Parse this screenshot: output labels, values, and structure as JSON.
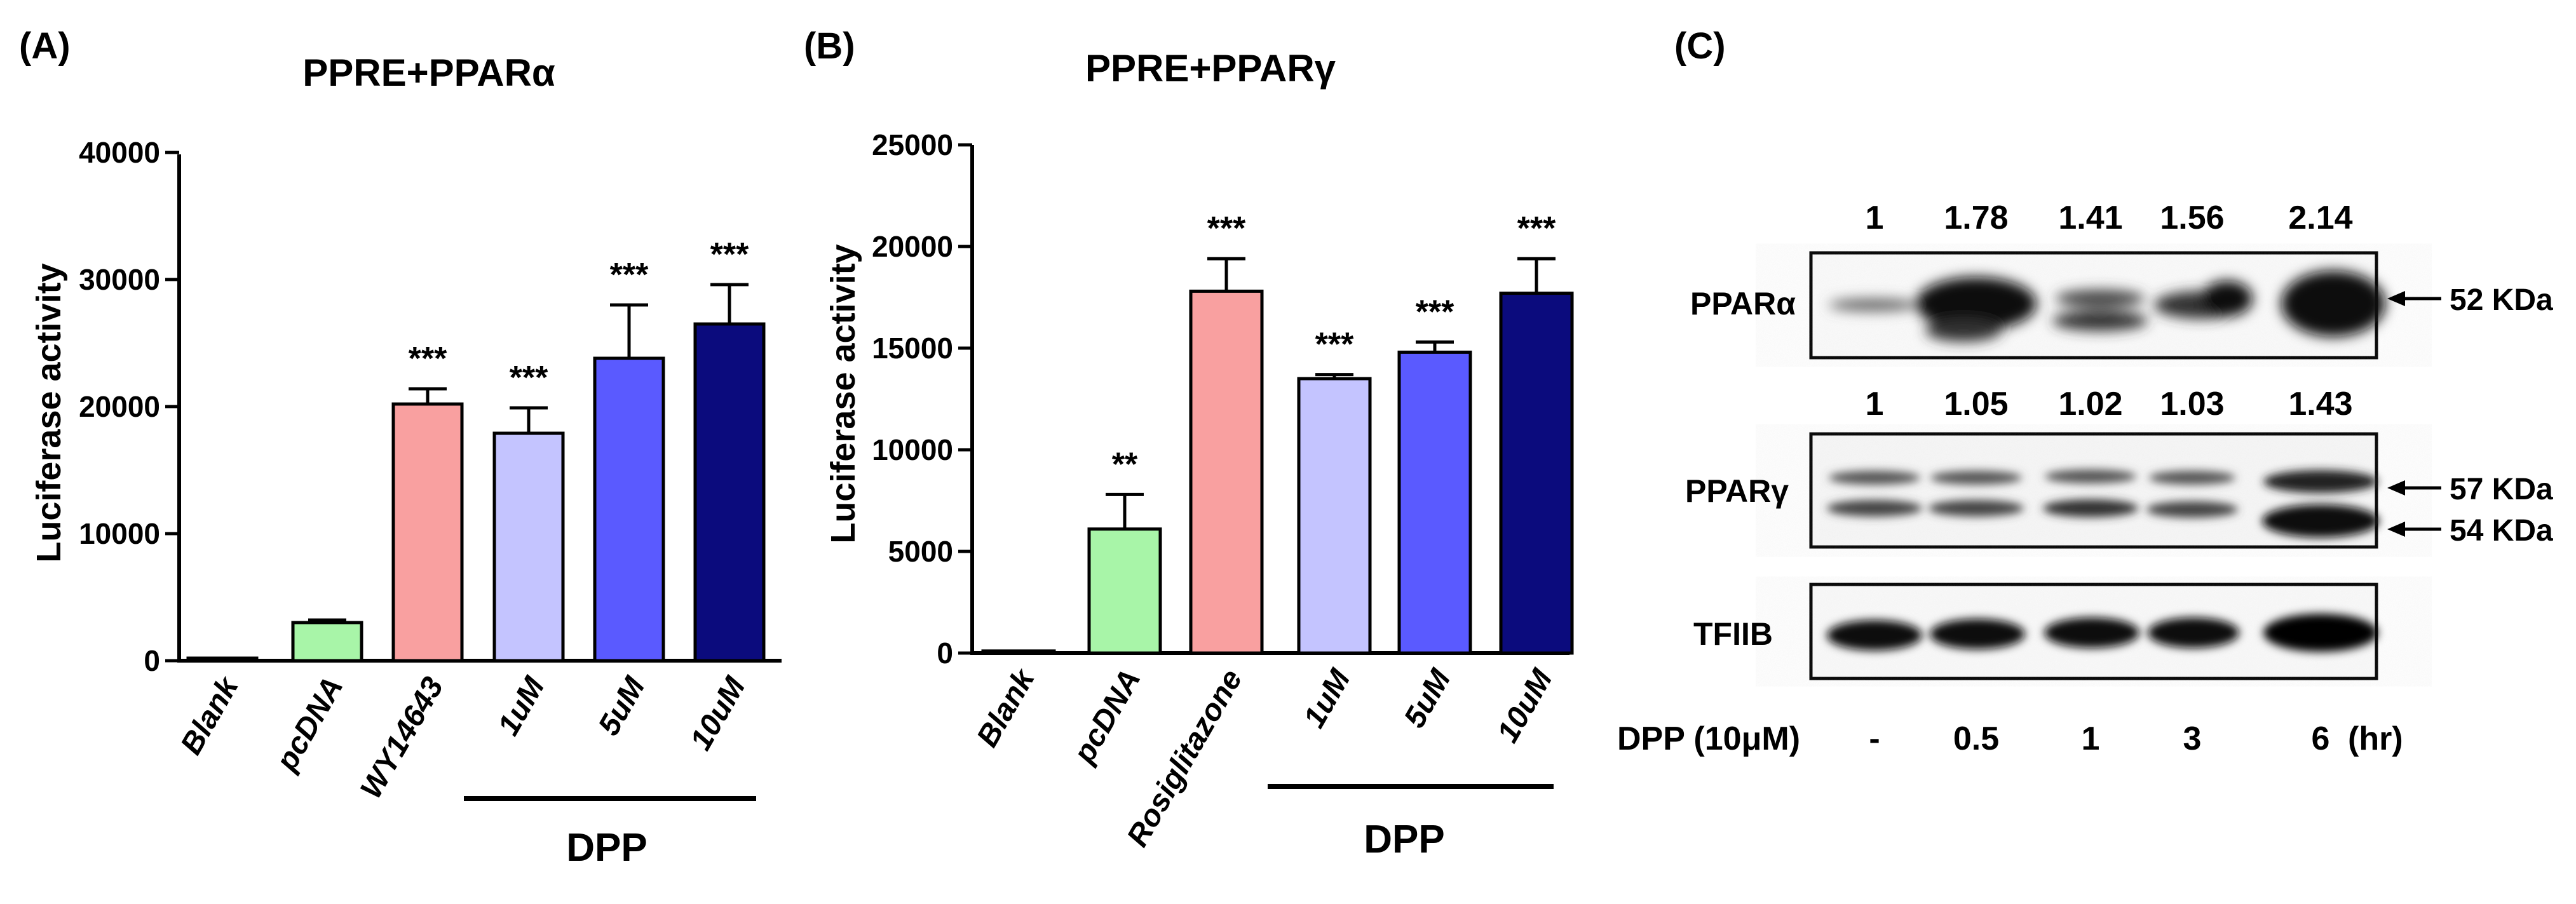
{
  "chart_data": [
    {
      "panel": "(A)",
      "type": "bar",
      "title": "PPRE+PPARα",
      "ylabel": "Luciferase activity",
      "xlabel": "",
      "ylim": [
        0,
        40000
      ],
      "yticks": [
        0,
        10000,
        20000,
        30000,
        40000
      ],
      "categories": [
        "Blank",
        "pcDNA",
        "WY14643",
        "1uM",
        "5uM",
        "10uM"
      ],
      "values": [
        200,
        3000,
        20200,
        17900,
        23800,
        26500
      ],
      "errors": [
        0,
        200,
        1200,
        2000,
        4200,
        3100
      ],
      "significance": [
        "",
        "",
        "***",
        "***",
        "***",
        "***"
      ],
      "colors": [
        "#ffffff",
        "#a8f5a8",
        "#f9a0a0",
        "#c4c4ff",
        "#5a5aff",
        "#0b0b7d"
      ],
      "group_label": "DPP",
      "group_members": [
        "1uM",
        "5uM",
        "10uM"
      ]
    },
    {
      "panel": "(B)",
      "type": "bar",
      "title": "PPRE+PPARγ",
      "ylabel": "Luciferase activity",
      "xlabel": "",
      "ylim": [
        0,
        25000
      ],
      "yticks": [
        0,
        5000,
        10000,
        15000,
        20000,
        25000
      ],
      "categories": [
        "Blank",
        "pcDNA",
        "Rosiglitazone",
        "1uM",
        "5uM",
        "10uM"
      ],
      "values": [
        100,
        6100,
        17800,
        13500,
        14800,
        17700
      ],
      "errors": [
        0,
        1700,
        1600,
        200,
        500,
        1700
      ],
      "significance": [
        "",
        "**",
        "***",
        "***",
        "***",
        "***"
      ],
      "colors": [
        "#ffffff",
        "#a8f5a8",
        "#f9a0a0",
        "#c4c4ff",
        "#5a5aff",
        "#0b0b7d"
      ],
      "group_label": "DPP",
      "group_members": [
        "1uM",
        "5uM",
        "10uM"
      ]
    }
  ],
  "western": {
    "panel": "(C)",
    "alpha": {
      "label": "PPARα",
      "ratios": [
        "1",
        "1.78",
        "1.41",
        "1.56",
        "2.14"
      ],
      "size": "52 KDa"
    },
    "gamma": {
      "label": "PPARγ",
      "ratios": [
        "1",
        "1.05",
        "1.02",
        "1.03",
        "1.43"
      ],
      "upper_size": "57 KDa",
      "lower_size": "54 KDa"
    },
    "tfiib": {
      "label": "TFIIB"
    },
    "treatment_label": "DPP (10μM)",
    "times": [
      "-",
      "0.5",
      "1",
      "3",
      "6"
    ],
    "unit": "(hr)"
  }
}
